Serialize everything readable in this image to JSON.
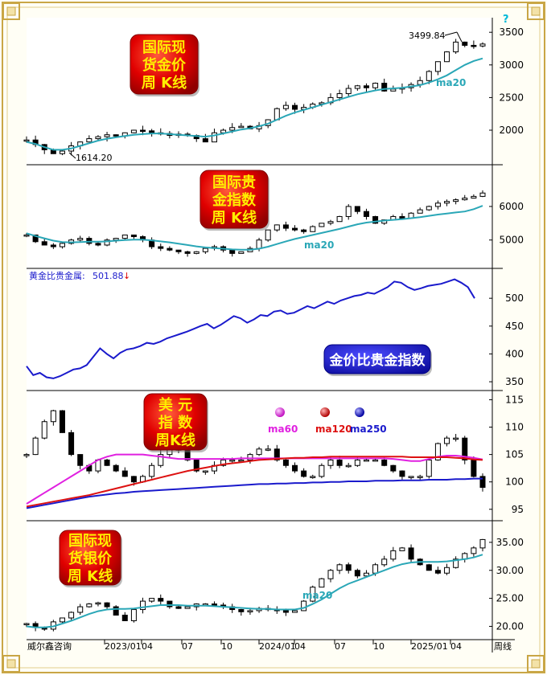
{
  "colors": {
    "frame_gold": "#c9a646",
    "price": "#000000",
    "ma20": "#2aa7b7",
    "ratio_line": "#1a1acc",
    "ma60": "#e020e0",
    "ma120": "#dd1111",
    "ma250": "#1a1acc",
    "badge_red": "#e00000",
    "badge_text": "#ffee00",
    "blue_badge": "#1010c0",
    "blue_badge_text": "#ffffff",
    "ma_label": "#2aa7b7",
    "down_arrow": "#dd0000"
  },
  "footer": {
    "source": "威尔鑫咨询",
    "period": "周线",
    "x_ticks": [
      "2023/01",
      "04",
      "07",
      "10",
      "2024/01",
      "04",
      "07",
      "10",
      "2025/01",
      "04"
    ]
  },
  "help_icon": "?",
  "chart_data": [
    {
      "type": "candlestick",
      "badge": [
        "国际现",
        "货金价",
        "周  K线"
      ],
      "ma_label": "ma20",
      "ylim": [
        1520,
        3650
      ],
      "yticks": [
        2000,
        2500,
        3000,
        3500
      ],
      "ytick_labels": [
        "2000",
        "2500",
        "3000",
        "3500"
      ],
      "annotations": [
        {
          "text": "3499.84",
          "value": 3499.84
        },
        {
          "text": "1614.20",
          "value": 1614.2
        }
      ],
      "closes": [
        1850,
        1780,
        1700,
        1640,
        1680,
        1760,
        1820,
        1870,
        1900,
        1930,
        1910,
        1960,
        2000,
        1990,
        1960,
        1950,
        1920,
        1940,
        1920,
        1870,
        1820,
        1960,
        2000,
        2040,
        2060,
        2020,
        2070,
        2160,
        2330,
        2380,
        2320,
        2350,
        2400,
        2420,
        2500,
        2560,
        2640,
        2680,
        2650,
        2720,
        2600,
        2630,
        2650,
        2700,
        2760,
        2900,
        3050,
        3200,
        3350,
        3300,
        3290,
        3320
      ],
      "ma20": [
        1820,
        1790,
        1740,
        1700,
        1700,
        1720,
        1760,
        1800,
        1840,
        1870,
        1890,
        1910,
        1930,
        1940,
        1950,
        1950,
        1940,
        1930,
        1920,
        1910,
        1900,
        1920,
        1950,
        1980,
        2010,
        2030,
        2060,
        2100,
        2160,
        2220,
        2270,
        2310,
        2350,
        2390,
        2430,
        2470,
        2510,
        2550,
        2580,
        2610,
        2630,
        2640,
        2650,
        2670,
        2690,
        2730,
        2780,
        2840,
        2920,
        3000,
        3060,
        3100
      ]
    },
    {
      "type": "candlestick",
      "badge": [
        "国际贵",
        "金指数",
        "周  K线"
      ],
      "ma_label": "ma20",
      "ylim": [
        4250,
        7100
      ],
      "yticks": [
        5000,
        6000
      ],
      "ytick_labels": [
        "5000",
        "6000"
      ],
      "closes": [
        5150,
        4950,
        4850,
        4800,
        4900,
        5000,
        5050,
        4900,
        4850,
        5000,
        5050,
        5150,
        5100,
        5000,
        4800,
        4750,
        4700,
        4650,
        4600,
        4650,
        4750,
        4800,
        4700,
        4600,
        4650,
        4750,
        5000,
        5300,
        5450,
        5350,
        5300,
        5250,
        5400,
        5500,
        5550,
        5700,
        6000,
        5850,
        5700,
        5500,
        5600,
        5700,
        5650,
        5800,
        5900,
        6000,
        6100,
        6150,
        6200,
        6250,
        6300,
        6400
      ],
      "ma20": [
        5200,
        5120,
        5050,
        4980,
        4940,
        4930,
        4940,
        4950,
        4950,
        4960,
        4980,
        5000,
        5010,
        5010,
        4990,
        4960,
        4930,
        4890,
        4850,
        4810,
        4780,
        4760,
        4740,
        4720,
        4710,
        4710,
        4740,
        4800,
        4880,
        4960,
        5030,
        5090,
        5150,
        5210,
        5270,
        5330,
        5400,
        5470,
        5520,
        5550,
        5580,
        5600,
        5620,
        5650,
        5680,
        5720,
        5760,
        5790,
        5820,
        5850,
        5920,
        6020
      ]
    },
    {
      "type": "line",
      "legend_label": "黄金比贵金属:",
      "last_value": "501.88",
      "arrow": "↓",
      "badge": [
        "金价比贵金指数"
      ],
      "ylim": [
        340,
        545
      ],
      "yticks": [
        350,
        400,
        450,
        500
      ],
      "ytick_labels": [
        "350",
        "400",
        "450",
        "500"
      ],
      "values": [
        378,
        362,
        366,
        358,
        356,
        360,
        366,
        372,
        374,
        380,
        395,
        410,
        400,
        392,
        402,
        408,
        410,
        414,
        420,
        418,
        422,
        428,
        432,
        436,
        440,
        445,
        450,
        454,
        446,
        452,
        460,
        468,
        464,
        456,
        462,
        470,
        468,
        476,
        478,
        472,
        474,
        480,
        486,
        482,
        488,
        494,
        490,
        496,
        500,
        504,
        506,
        510,
        508,
        514,
        520,
        530,
        528,
        520,
        515,
        518,
        522,
        524,
        526,
        530,
        534,
        528,
        520,
        500
      ]
    },
    {
      "type": "candlestick",
      "badge": [
        "美  元",
        "指  数",
        "周K线"
      ],
      "legend": [
        {
          "name": "ma60",
          "color": "#e020e0"
        },
        {
          "name": "ma120",
          "color": "#dd1111"
        },
        {
          "name": "ma250",
          "color": "#1a1acc"
        }
      ],
      "ylim": [
        93.5,
        115.8
      ],
      "yticks": [
        95,
        100,
        105,
        110,
        115
      ],
      "ytick_labels": [
        "95",
        "100",
        "105",
        "110",
        "115"
      ],
      "closes": [
        105,
        108,
        111,
        113,
        109,
        105,
        103,
        102,
        104,
        103,
        102,
        101,
        100,
        101,
        103,
        105,
        106,
        106,
        104,
        102,
        102,
        103,
        104,
        104,
        104,
        105,
        106,
        106,
        104,
        103,
        102,
        101,
        101,
        103,
        104,
        103,
        103,
        104,
        104,
        104,
        103,
        102,
        101,
        101,
        101,
        104,
        107,
        108,
        108,
        104,
        101,
        99
      ],
      "ma60": [
        96,
        97,
        98,
        99,
        100,
        101,
        102,
        103,
        104,
        104.6,
        105,
        105,
        105,
        105,
        104.8,
        104.6,
        104.4,
        104.2,
        104.2,
        104.2,
        104.2,
        104.2,
        104.2,
        104.2,
        104.3,
        104.3,
        104.3,
        104.3,
        104.3,
        104.3,
        104.3,
        104.3,
        104.3,
        104.3,
        104.3,
        104.3,
        104.3,
        104.3,
        104.3,
        104.3,
        104.3,
        104.2,
        104,
        103.8,
        103.8,
        104.2,
        104.6,
        104.8,
        104.8,
        104.6,
        104.4,
        104.1
      ],
      "ma120": [
        95.5,
        95.8,
        96.1,
        96.4,
        96.7,
        97,
        97.3,
        97.6,
        98,
        98.4,
        98.8,
        99.2,
        99.6,
        100,
        100.4,
        100.8,
        101.2,
        101.6,
        102,
        102.3,
        102.6,
        102.9,
        103.2,
        103.4,
        103.6,
        103.8,
        104,
        104.1,
        104.2,
        104.3,
        104.4,
        104.4,
        104.5,
        104.5,
        104.6,
        104.6,
        104.6,
        104.6,
        104.6,
        104.6,
        104.6,
        104.6,
        104.6,
        104.5,
        104.5,
        104.5,
        104.5,
        104.5,
        104.4,
        104.3,
        104.1,
        104
      ],
      "ma250": [
        95.2,
        95.5,
        95.8,
        96.1,
        96.4,
        96.7,
        97,
        97.3,
        97.5,
        97.7,
        97.9,
        98,
        98.2,
        98.3,
        98.4,
        98.5,
        98.6,
        98.7,
        98.8,
        98.9,
        99,
        99.1,
        99.2,
        99.3,
        99.4,
        99.5,
        99.6,
        99.6,
        99.7,
        99.7,
        99.8,
        99.8,
        99.9,
        99.9,
        100,
        100,
        100.1,
        100.1,
        100.1,
        100.2,
        100.2,
        100.2,
        100.3,
        100.3,
        100.3,
        100.4,
        100.4,
        100.4,
        100.5,
        100.5,
        100.6,
        100.6
      ]
    },
    {
      "type": "candlestick",
      "badge": [
        "国际现",
        "货银价",
        "周  K线"
      ],
      "ma_label": "ma20",
      "ylim": [
        18.2,
        38
      ],
      "yticks": [
        20,
        25,
        30,
        35
      ],
      "ytick_labels": [
        "20.00",
        "25.00",
        "30.00",
        "35.00"
      ],
      "closes": [
        20.5,
        19.8,
        19.5,
        20.8,
        21.5,
        22.5,
        23.5,
        24,
        24.2,
        23.5,
        22,
        21,
        23,
        24.5,
        25,
        24.5,
        23.5,
        23.2,
        23.5,
        24,
        24,
        23.8,
        23.5,
        23,
        22.6,
        22.8,
        23.2,
        23,
        22.8,
        22.5,
        22.8,
        24.5,
        27,
        28.5,
        30,
        31,
        30,
        29,
        29.5,
        31,
        32,
        33.5,
        34,
        32,
        31,
        30,
        29.5,
        30.5,
        32,
        33,
        34,
        35.5
      ],
      "ma20": [
        20,
        19.8,
        19.8,
        20,
        20.5,
        21,
        21.6,
        22.2,
        22.7,
        23,
        23.1,
        23.1,
        23.2,
        23.4,
        23.6,
        23.8,
        23.8,
        23.8,
        23.7,
        23.7,
        23.7,
        23.6,
        23.5,
        23.4,
        23.3,
        23.2,
        23.1,
        23.1,
        23,
        23,
        23,
        23.3,
        24,
        24.8,
        25.8,
        26.8,
        27.6,
        28.2,
        28.8,
        29.4,
        30,
        30.6,
        31.1,
        31.4,
        31.5,
        31.5,
        31.5,
        31.6,
        31.8,
        32,
        32.3,
        32.8
      ]
    }
  ]
}
